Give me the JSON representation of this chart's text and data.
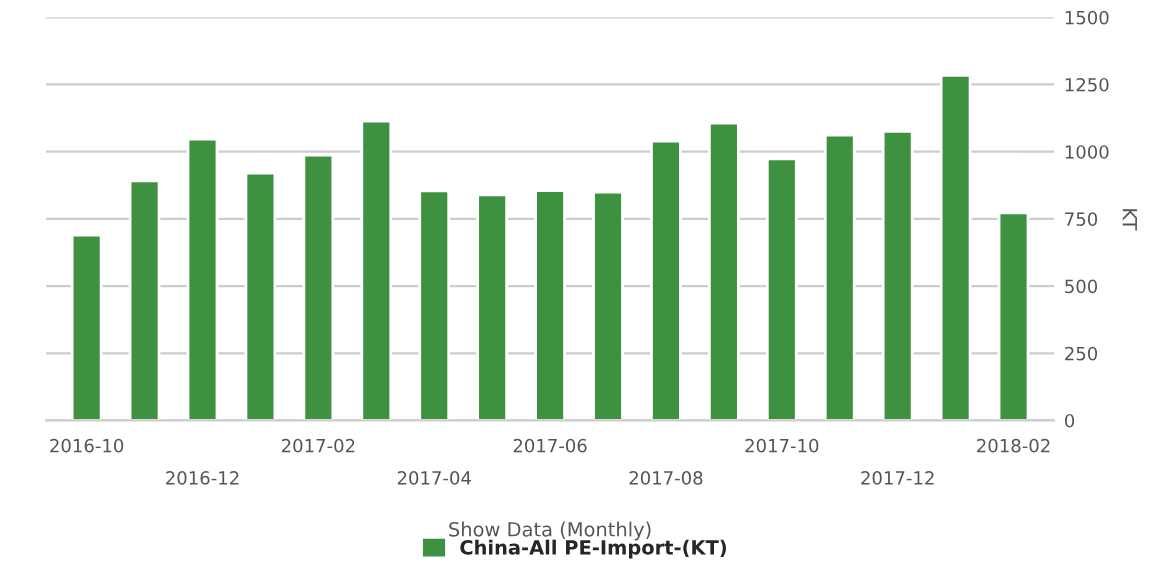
{
  "chart_data": {
    "type": "bar",
    "xlabel": "Show Data (Monthly)",
    "ylabel": "KT",
    "categories": [
      "2016-10",
      null,
      "2016-12",
      null,
      "2017-02",
      null,
      "2017-04",
      null,
      "2017-06",
      null,
      "2017-08",
      null,
      "2017-10",
      null,
      "2017-12",
      null,
      "2018-02"
    ],
    "series": [
      {
        "name": "China-All PE-Import-(KT)",
        "color": "#3d9140",
        "values": [
          690,
          891,
          1047,
          920,
          987,
          1114,
          854,
          839,
          855,
          850,
          1039,
          1106,
          973,
          1062,
          1076,
          1284,
          772
        ]
      }
    ],
    "ylim": [
      0,
      1500
    ],
    "yticks": [
      0,
      250,
      500,
      750,
      1000,
      1250,
      1500
    ],
    "grid": "y",
    "legend": "bottom"
  }
}
